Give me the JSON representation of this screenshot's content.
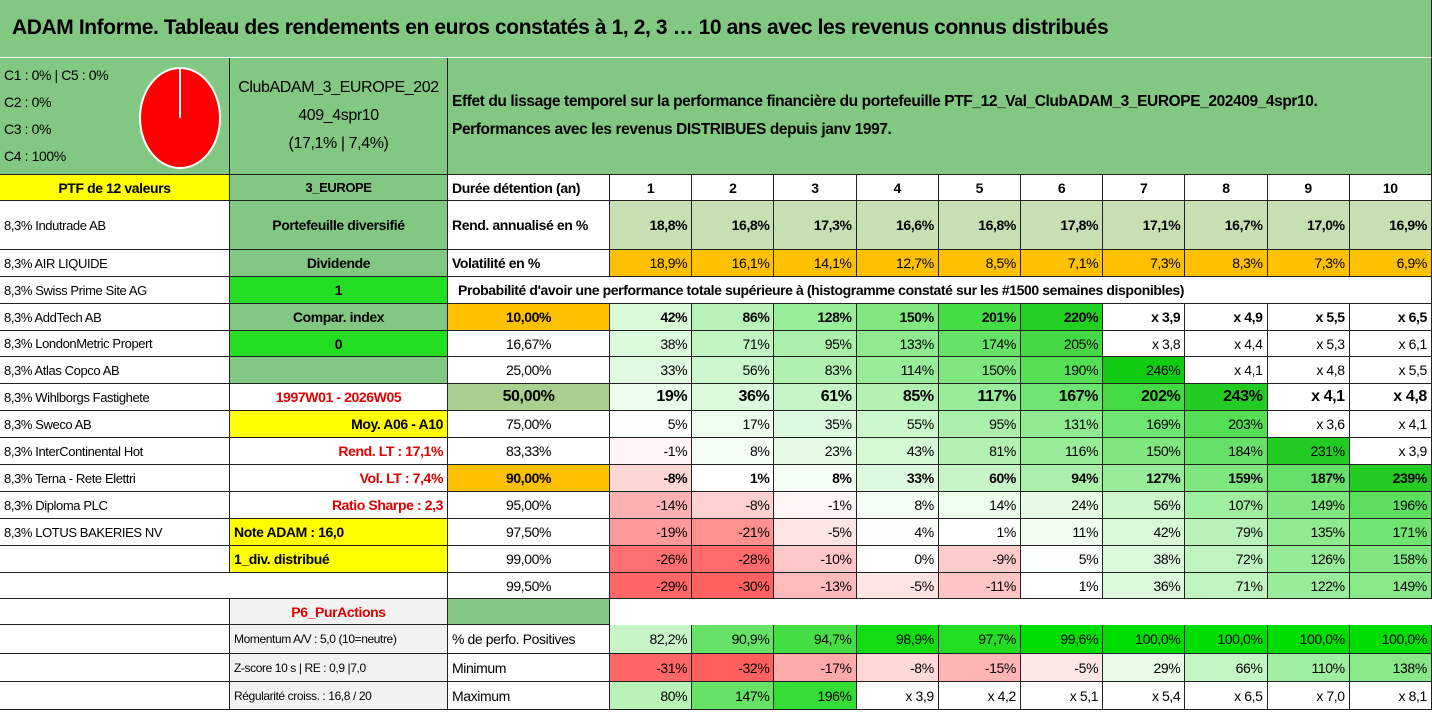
{
  "title": "ADAM Informe. Tableau des rendements en euros constatés à 1, 2, 3 … 10 ans avec les revenus connus distribués",
  "header": {
    "classes": [
      "C1 : 0% | C5 : 0%",
      "C2 : 0%",
      "C3 : 0%",
      "C4 : 100%"
    ],
    "pie": {
      "C4": 100,
      "color": "#ff0000"
    },
    "portfolio_name": [
      "ClubADAM_3_EUROPE_202",
      "409_4spr10",
      "(17,1% | 7,4%)"
    ],
    "description": [
      "Effet du lissage temporel sur la performance financière du portefeuille PTF_12_Val_ClubADAM_3_EUROPE_202409_4spr10.",
      "Performances avec les revenus DISTRIBUES depuis janv 1997."
    ]
  },
  "ptf_label": "PTF de 12 valeurs",
  "region": "3_EUROPE",
  "duration_label": "Durée détention (an)",
  "years": [
    "1",
    "2",
    "3",
    "4",
    "5",
    "6",
    "7",
    "8",
    "9",
    "10"
  ],
  "holdings": [
    "8,3% Indutrade AB",
    "8,3% AIR LIQUIDE",
    "8,3% Swiss Prime Site AG",
    "8,3% AddTech AB",
    "8,3% LondonMetric Propert",
    "8,3% Atlas Copco AB",
    "8,3% Wihlborgs Fastighete",
    "8,3% Sweco AB",
    "8,3% InterContinental Hot",
    "8,3% Terna - Rete Elettri",
    "8,3% Diploma PLC",
    "8,3% LOTUS BAKERIES NV"
  ],
  "info": [
    "Portefeuille diversifié",
    "Dividende",
    "1",
    "Compar. index",
    "0",
    "",
    "1997W01 - 2026W05",
    "Moy. A06 - A10",
    "Rend. LT : 17,1%",
    "Vol. LT : 7,4%",
    "Ratio Sharpe : 2,3",
    "Note ADAM : 16,0",
    "1_div. distribué"
  ],
  "rend": {
    "label": "Rend. annualisé en %",
    "values": [
      "18,8%",
      "16,8%",
      "17,3%",
      "16,6%",
      "16,8%",
      "17,8%",
      "17,1%",
      "16,7%",
      "17,0%",
      "16,9%"
    ],
    "color": "#c6e0b4"
  },
  "vol": {
    "label": "Volatilité en %",
    "values": [
      "18,9%",
      "16,1%",
      "14,1%",
      "12,7%",
      "8,5%",
      "7,1%",
      "7,3%",
      "8,3%",
      "7,3%",
      "6,9%"
    ],
    "color": "#ffc000"
  },
  "prob_header": "Probabilité d'avoir une performance totale supérieure à (histogramme constaté sur les #1500 semaines disponibles)",
  "prob_rows": [
    {
      "p": "10,00%",
      "pc": "#ffc000",
      "bold": true,
      "v": [
        "42%",
        "86%",
        "128%",
        "150%",
        "201%",
        "220%",
        "x 3,9",
        "x 4,9",
        "x 5,5",
        "x 6,5"
      ],
      "c": [
        "#d9f9d9",
        "#b8f2b8",
        "#99ee99",
        "#80e880",
        "#44dd44",
        "#22d022",
        "#fff",
        "#fff",
        "#fff",
        "#fff"
      ]
    },
    {
      "p": "16,67%",
      "pc": "#fff",
      "v": [
        "38%",
        "71%",
        "95%",
        "133%",
        "174%",
        "205%",
        "x 3,8",
        "x 4,4",
        "x 5,3",
        "x 6,1"
      ],
      "c": [
        "#dcf9dc",
        "#c0f4c0",
        "#aaf0aa",
        "#90eb90",
        "#66e366",
        "#44d944",
        "#fff",
        "#fff",
        "#fff",
        "#fff"
      ]
    },
    {
      "p": "25,00%",
      "pc": "#fff",
      "v": [
        "33%",
        "56%",
        "83%",
        "114%",
        "150%",
        "190%",
        "246%",
        "x 4,1",
        "x 4,8",
        "x 5,5"
      ],
      "c": [
        "#e0fae0",
        "#ccf6cc",
        "#b0f1b0",
        "#99ed99",
        "#80e780",
        "#55df55",
        "#11cc11",
        "#fff",
        "#fff",
        "#fff"
      ]
    },
    {
      "p": "50,00%",
      "pc": "#a9d08e",
      "bold": true,
      "big": true,
      "v": [
        "19%",
        "36%",
        "61%",
        "85%",
        "117%",
        "167%",
        "202%",
        "243%",
        "x 4,1",
        "x 4,8"
      ],
      "c": [
        "#ecfcec",
        "#dcf9dc",
        "#c8f5c8",
        "#b3f1b3",
        "#99ec99",
        "#70e470",
        "#44da44",
        "#22cc22",
        "#fff",
        "#fff"
      ]
    },
    {
      "p": "75,00%",
      "pc": "#fff",
      "v": [
        "5%",
        "17%",
        "35%",
        "55%",
        "95%",
        "131%",
        "169%",
        "203%",
        "x 3,6",
        "x 4,1"
      ],
      "c": [
        "#fbfffb",
        "#eefcee",
        "#ddf9dd",
        "#ccf6cc",
        "#aaf0aa",
        "#90ea90",
        "#70e470",
        "#55dd55",
        "#fff",
        "#fff"
      ]
    },
    {
      "p": "83,33%",
      "pc": "#fff",
      "v": [
        "-1%",
        "8%",
        "23%",
        "43%",
        "81%",
        "116%",
        "150%",
        "184%",
        "231%",
        "x 3,9"
      ],
      "c": [
        "#fff4f4",
        "#f4fdf4",
        "#e4fae4",
        "#d4f8d4",
        "#b3f1b3",
        "#99ec99",
        "#80e780",
        "#66e066",
        "#22cc22",
        "#fff"
      ]
    },
    {
      "p": "90,00%",
      "pc": "#ffc000",
      "bold": true,
      "v": [
        "-8%",
        "1%",
        "8%",
        "33%",
        "60%",
        "94%",
        "127%",
        "159%",
        "187%",
        "239%"
      ],
      "c": [
        "#ffd6d6",
        "#fff",
        "#f4fdf4",
        "#ddf9dd",
        "#c8f5c8",
        "#aaf0aa",
        "#99ec99",
        "#80e680",
        "#66e066",
        "#22cc22"
      ]
    },
    {
      "p": "95,00%",
      "pc": "#fff",
      "v": [
        "-14%",
        "-8%",
        "-1%",
        "8%",
        "14%",
        "24%",
        "56%",
        "107%",
        "149%",
        "196%"
      ],
      "c": [
        "#ffb0b0",
        "#ffd0d0",
        "#fff4f4",
        "#f4fdf4",
        "#eefcee",
        "#e4fae4",
        "#ccf6cc",
        "#a0eea0",
        "#80e680",
        "#5ede5e"
      ]
    },
    {
      "p": "97,50%",
      "pc": "#fff",
      "v": [
        "-19%",
        "-21%",
        "-5%",
        "4%",
        "1%",
        "11%",
        "42%",
        "79%",
        "135%",
        "171%"
      ],
      "c": [
        "#ff9a9a",
        "#ff9090",
        "#ffe4e4",
        "#fafffa",
        "#fff",
        "#f0fdf0",
        "#d8f8d8",
        "#b8f2b8",
        "#90ea90",
        "#70e370"
      ]
    },
    {
      "p": "99,00%",
      "pc": "#fff",
      "v": [
        "-26%",
        "-28%",
        "-10%",
        "0%",
        "-9%",
        "5%",
        "38%",
        "72%",
        "126%",
        "158%"
      ],
      "c": [
        "#ff7070",
        "#ff6a6a",
        "#ffc8c8",
        "#fff",
        "#ffcccc",
        "#fbfffb",
        "#dcf9dc",
        "#bff3bf",
        "#96eb96",
        "#80e680"
      ]
    },
    {
      "p": "99,50%",
      "pc": "#fff",
      "v": [
        "-29%",
        "-30%",
        "-13%",
        "-5%",
        "-11%",
        "1%",
        "36%",
        "71%",
        "122%",
        "149%"
      ],
      "c": [
        "#ff6666",
        "#ff6060",
        "#ffbbbb",
        "#ffe4e4",
        "#ffc4c4",
        "#fff",
        "#dcf9dc",
        "#c0f4c0",
        "#99ec99",
        "#88e888"
      ]
    }
  ],
  "p6_label": "P6_PurActions",
  "stats": [
    {
      "side": "Momentum A/V : 5,0 (10=neutre)",
      "label": "% de perfo. Positives",
      "v": [
        "82,2%",
        "90,9%",
        "94,7%",
        "98,9%",
        "97,7%",
        "99,6%",
        "100,0%",
        "100,0%",
        "100,0%",
        "100,0%"
      ],
      "c": [
        "#c8f5c8",
        "#66e366",
        "#44dd44",
        "#11dd11",
        "#22dd22",
        "#00dd00",
        "#00dd00",
        "#00dd00",
        "#00dd00",
        "#00dd00"
      ]
    },
    {
      "side": "Z-score 10 s | RE : 0,9 |7,0",
      "label": "Minimum",
      "v": [
        "-31%",
        "-32%",
        "-17%",
        "-8%",
        "-15%",
        "-5%",
        "29%",
        "66%",
        "110%",
        "138%"
      ],
      "c": [
        "#ff6666",
        "#ff5f5f",
        "#ffaaaa",
        "#ffd8d8",
        "#ffb5b5",
        "#ffe6e6",
        "#e8fbe8",
        "#c4f5c4",
        "#9fee9f",
        "#88e888"
      ]
    },
    {
      "side": "Régularité croiss. : 16,8 / 20",
      "label": "Maximum",
      "v": [
        "80%",
        "147%",
        "196%",
        "x 3,9",
        "x 4,2",
        "x 5,1",
        "x 5,4",
        "x 6,5",
        "x 7,0",
        "x 8,1"
      ],
      "c": [
        "#b8f2b8",
        "#66e366",
        "#33dd33",
        "#fff",
        "#fff",
        "#fff",
        "#fff",
        "#fff",
        "#fff",
        "#fff"
      ]
    }
  ]
}
